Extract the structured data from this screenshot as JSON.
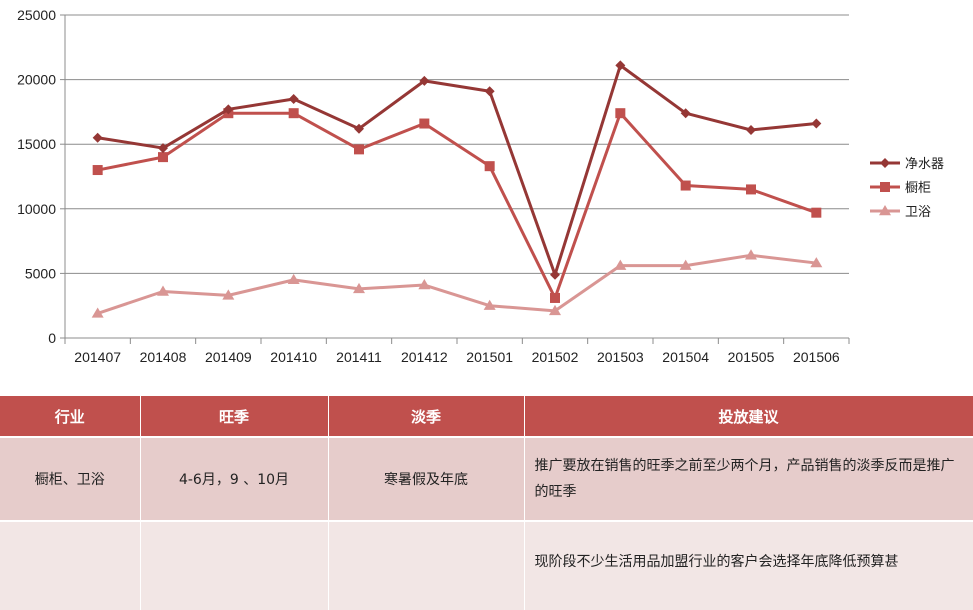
{
  "chart_data": {
    "type": "line",
    "categories": [
      "201407",
      "201408",
      "201409",
      "201410",
      "201411",
      "201412",
      "201501",
      "201502",
      "201503",
      "201504",
      "201505",
      "201506"
    ],
    "series": [
      {
        "name": "净水器",
        "color": "#953735",
        "marker": "diamond",
        "values": [
          15500,
          14700,
          17700,
          18500,
          16200,
          19900,
          19100,
          4900,
          21100,
          17400,
          16100,
          16600
        ]
      },
      {
        "name": "橱柜",
        "color": "#c0504d",
        "marker": "square",
        "values": [
          13000,
          14000,
          17400,
          17400,
          14600,
          16600,
          13300,
          3100,
          17400,
          11800,
          11500,
          9700
        ]
      },
      {
        "name": "卫浴",
        "color": "#d99694",
        "marker": "triangle",
        "values": [
          1900,
          3600,
          3300,
          4500,
          3800,
          4100,
          2500,
          2100,
          5600,
          5600,
          6400,
          5800
        ]
      }
    ],
    "yticks": [
      "0",
      "5000",
      "10000",
      "15000",
      "20000",
      "25000"
    ],
    "ylim": [
      0,
      25000
    ],
    "grid": true,
    "legend": "right"
  },
  "table": {
    "headers": [
      "行业",
      "旺季",
      "淡季",
      "投放建议"
    ],
    "rows": [
      {
        "industry": "橱柜、卫浴",
        "peak": "4-6月，9 、10月",
        "off": "寒暑假及年底",
        "advice": "推广要放在销售的旺季之前至少两个月，产品销售的淡季反而是推广的旺季"
      },
      {
        "industry": "",
        "peak": "",
        "off": "",
        "advice": "现阶段不少生活用品加盟行业的客户会选择年底降低预算甚"
      }
    ]
  }
}
